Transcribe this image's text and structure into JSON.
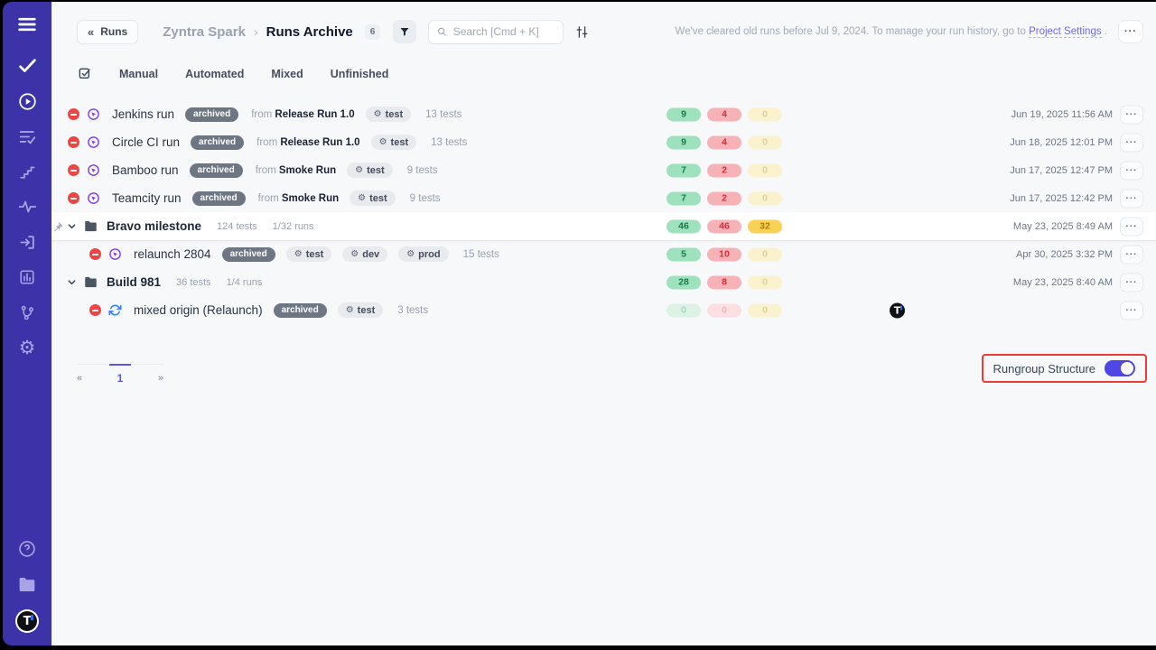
{
  "colors": {
    "accent": "#4f46e5",
    "sidebar": "#3c33a8",
    "highlight_border": "#ee3b35",
    "link": "#6f6af1"
  },
  "sidebar": {
    "icons": [
      "menu",
      "check",
      "runs-play",
      "list-check",
      "stairs",
      "activity",
      "import",
      "report",
      "branch",
      "settings-gear"
    ],
    "bottom_icons": [
      "help",
      "projects-folder",
      "user-avatar"
    ],
    "avatar_letter": "T"
  },
  "header": {
    "back_label": "Runs",
    "back_chevron": "«",
    "breadcrumb_project": "Zyntra Spark",
    "breadcrumb_separator": "›",
    "breadcrumb_page": "Runs Archive",
    "count_badge": "6",
    "search_placeholder": "Search [Cmd + K]",
    "notice_text": "We've cleared old runs before Jul 9, 2024. To manage your run history, go to",
    "notice_link": "Project Settings",
    "notice_suffix": " .",
    "more_label": "···"
  },
  "tabs": [
    "Manual",
    "Automated",
    "Mixed",
    "Unfinished"
  ],
  "rows": [
    {
      "type": "run",
      "icon": "autorun",
      "indent": 0,
      "name": "Jenkins run",
      "badge": "archived",
      "from_label": "from",
      "from_name": "Release Run 1.0",
      "tags": [
        "test"
      ],
      "tests": "13 tests",
      "counts": [
        {
          "value": "9",
          "color": "green",
          "muted": false
        },
        {
          "value": "4",
          "color": "red",
          "muted": false
        },
        {
          "value": "0",
          "color": "yellow",
          "muted": true
        }
      ],
      "date": "Jun 19, 2025 11:56 AM"
    },
    {
      "type": "run",
      "icon": "autorun",
      "indent": 0,
      "name": "Circle CI run",
      "badge": "archived",
      "from_label": "from",
      "from_name": "Release Run 1.0",
      "tags": [
        "test"
      ],
      "tests": "13 tests",
      "counts": [
        {
          "value": "9",
          "color": "green",
          "muted": false
        },
        {
          "value": "4",
          "color": "red",
          "muted": false
        },
        {
          "value": "0",
          "color": "yellow",
          "muted": true
        }
      ],
      "date": "Jun 18, 2025 12:01 PM"
    },
    {
      "type": "run",
      "icon": "autorun",
      "indent": 0,
      "name": "Bamboo run",
      "badge": "archived",
      "from_label": "from",
      "from_name": "Smoke Run",
      "tags": [
        "test"
      ],
      "tests": "9 tests",
      "counts": [
        {
          "value": "7",
          "color": "green",
          "muted": false
        },
        {
          "value": "2",
          "color": "red",
          "muted": false
        },
        {
          "value": "0",
          "color": "yellow",
          "muted": true
        }
      ],
      "date": "Jun 17, 2025 12:47 PM"
    },
    {
      "type": "run",
      "icon": "autorun",
      "indent": 0,
      "name": "Teamcity run",
      "badge": "archived",
      "from_label": "from",
      "from_name": "Smoke Run",
      "tags": [
        "test"
      ],
      "tests": "9 tests",
      "counts": [
        {
          "value": "7",
          "color": "green",
          "muted": false
        },
        {
          "value": "2",
          "color": "red",
          "muted": false
        },
        {
          "value": "0",
          "color": "yellow",
          "muted": true
        }
      ],
      "date": "Jun 17, 2025 12:42 PM"
    },
    {
      "type": "group",
      "name": "Bravo milestone",
      "tests": "124 tests",
      "runs": "1/32 runs",
      "pinned": true,
      "highlighted": true,
      "counts": [
        {
          "value": "46",
          "color": "green",
          "muted": false
        },
        {
          "value": "46",
          "color": "red",
          "muted": false
        },
        {
          "value": "32",
          "color": "yellow",
          "muted": false
        }
      ],
      "date": "May 23, 2025 8:49 AM"
    },
    {
      "type": "run",
      "icon": "autorun",
      "indent": 1,
      "name": "relaunch 2804",
      "badge": "archived",
      "tags": [
        "test",
        "dev",
        "prod"
      ],
      "tests": "15 tests",
      "counts": [
        {
          "value": "5",
          "color": "green",
          "muted": false
        },
        {
          "value": "10",
          "color": "red",
          "muted": false
        },
        {
          "value": "0",
          "color": "yellow",
          "muted": true
        }
      ],
      "date": "Apr 30, 2025 3:32 PM"
    },
    {
      "type": "group",
      "name": "Build 981",
      "tests": "36 tests",
      "runs": "1/4 runs",
      "pinned": false,
      "highlighted": false,
      "counts": [
        {
          "value": "28",
          "color": "green",
          "muted": false
        },
        {
          "value": "8",
          "color": "red",
          "muted": false
        },
        {
          "value": "0",
          "color": "yellow",
          "muted": true
        }
      ],
      "date": "May 23, 2025 8:40 AM"
    },
    {
      "type": "run",
      "icon": "sync",
      "indent": 1,
      "name": "mixed origin (Relaunch)",
      "badge": "archived",
      "tags": [
        "test"
      ],
      "tests": "3 tests",
      "counts": [
        {
          "value": "0",
          "color": "green",
          "muted": true
        },
        {
          "value": "0",
          "color": "red",
          "muted": true
        },
        {
          "value": "0",
          "color": "yellow",
          "muted": true
        }
      ],
      "avatar": "T"
    }
  ],
  "row_more_label": "···",
  "tag_gear": "⚙",
  "pagination": {
    "prev": "«",
    "page": "1",
    "next": "»"
  },
  "footer_toggle": {
    "label": "Rungroup Structure",
    "state": "on"
  }
}
